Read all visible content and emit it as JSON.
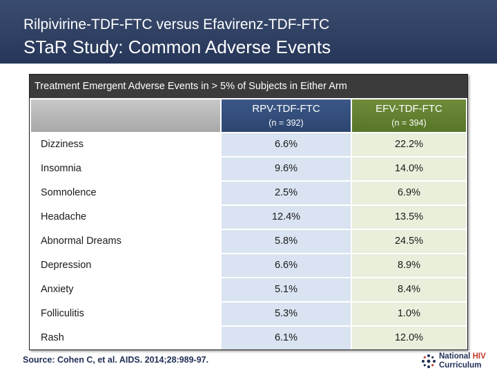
{
  "header": {
    "subtitle": "Rilpivirine-TDF-FTC versus Efavirenz-TDF-FTC",
    "title": "STaR Study: Common Adverse Events"
  },
  "table": {
    "caption": "Treatment Emergent Adverse Events in > 5% of Subjects in Either Arm",
    "columns": [
      {
        "name": "RPV-TDF-FTC",
        "n": "(n = 392)"
      },
      {
        "name": "EFV-TDF-FTC",
        "n": "(n = 394)"
      }
    ],
    "rows": [
      {
        "event": "Dizziness",
        "rpv": "6.6%",
        "efv": "22.2%"
      },
      {
        "event": "Insomnia",
        "rpv": "9.6%",
        "efv": "14.0%"
      },
      {
        "event": "Somnolence",
        "rpv": "2.5%",
        "efv": "6.9%"
      },
      {
        "event": "Headache",
        "rpv": "12.4%",
        "efv": "13.5%"
      },
      {
        "event": "Abnormal Dreams",
        "rpv": "5.8%",
        "efv": "24.5%"
      },
      {
        "event": "Depression",
        "rpv": "6.6%",
        "efv": "8.9%"
      },
      {
        "event": "Anxiety",
        "rpv": "5.1%",
        "efv": "8.4%"
      },
      {
        "event": "Folliculitis",
        "rpv": "5.3%",
        "efv": "1.0%"
      },
      {
        "event": "Rash",
        "rpv": "6.1%",
        "efv": "12.0%"
      }
    ]
  },
  "footer": {
    "source": "Source: Cohen C, et al. AIDS. 2014;28:989-97.",
    "logo_line1_part1": "National",
    "logo_line1_part2": "HIV",
    "logo_line2": "Curriculum"
  },
  "colors": {
    "header_bg": "#2f3f61",
    "rpv_header": "#2c4670",
    "efv_header": "#587628",
    "rpv_cell": "#d9e3f1",
    "efv_cell": "#e8efdb",
    "caption_bg": "#3b3b3b"
  }
}
